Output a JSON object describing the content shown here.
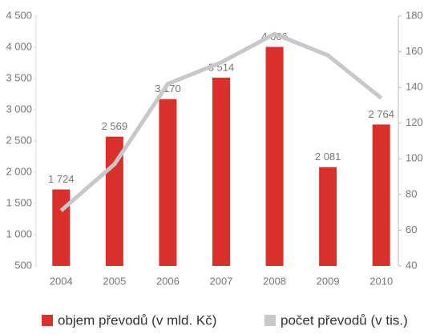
{
  "chart_data": {
    "type": "bar",
    "categories": [
      "2004",
      "2005",
      "2006",
      "2007",
      "2008",
      "2009",
      "2010"
    ],
    "series": [
      {
        "name": "objem převodů (v mld. Kč)",
        "type": "bar",
        "color": "#d9302c",
        "values": [
          1724,
          2569,
          3170,
          3514,
          4006,
          2081,
          2764
        ],
        "value_labels": [
          "1 724",
          "2 569",
          "3 170",
          "3 514",
          "4 006",
          "2 081",
          "2 764"
        ]
      },
      {
        "name": "počet převodů (v tis.)",
        "type": "line",
        "axis": "y2",
        "color": "#c8c8c8",
        "values": [
          71,
          97,
          142,
          154,
          170,
          158,
          134
        ]
      }
    ],
    "ylim": [
      500,
      4500
    ],
    "yticks": [
      {
        "value": 500,
        "label": "500"
      },
      {
        "value": 1000,
        "label": "1 000"
      },
      {
        "value": 1500,
        "label": "1 500"
      },
      {
        "value": 2000,
        "label": "2 000"
      },
      {
        "value": 2500,
        "label": "2 500"
      },
      {
        "value": 3000,
        "label": "3 000"
      },
      {
        "value": 3500,
        "label": "3 500"
      },
      {
        "value": 4000,
        "label": "4 000"
      },
      {
        "value": 4500,
        "label": "4 500"
      }
    ],
    "y2lim": [
      40,
      180
    ],
    "y2ticks": [
      40,
      60,
      80,
      100,
      120,
      140,
      160,
      180
    ],
    "legend": "bottom"
  }
}
